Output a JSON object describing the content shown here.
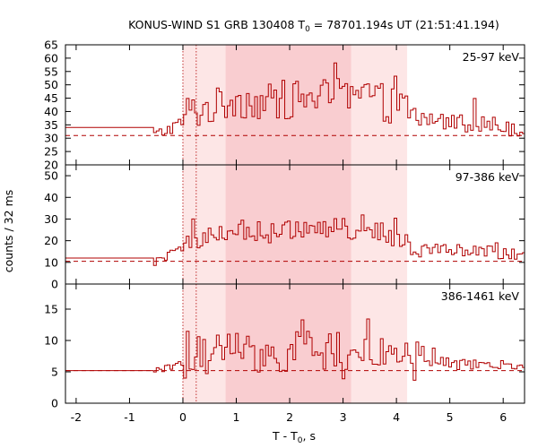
{
  "chart_data": {
    "type": "line",
    "title": "KONUS-WIND S1 GRB 130408 T",
    "title_sub": "0",
    "title_rest": " = 78701.194s UT (21:51:41.194)",
    "xlabel": "T - T",
    "xlabel_sub": "0",
    "xlabel_rest": ", s",
    "ylabel": "counts / 32 ms",
    "xlim": [
      -2.2,
      6.4
    ],
    "x_ticks": [
      -2,
      -1,
      0,
      1,
      2,
      3,
      4,
      5,
      6
    ],
    "shade_light": [
      0.0,
      4.2
    ],
    "shade_dark": [
      0.8,
      3.15
    ],
    "vlines": [
      0.0,
      0.25
    ],
    "line_color": "#b00000",
    "shade_light_color": "#fde6e6",
    "shade_dark_color": "#f9cdd0",
    "panels": [
      {
        "label": "25-97 keV",
        "ylim": [
          20,
          65
        ],
        "y_ticks": [
          20,
          25,
          30,
          35,
          40,
          45,
          50,
          55,
          60,
          65
        ],
        "background": 31,
        "pre_level": 34,
        "quiet_amp": 2.5,
        "amp": 1.0,
        "min": 21
      },
      {
        "label": "97-386 keV",
        "ylim": [
          0,
          55
        ],
        "y_ticks": [
          0,
          10,
          20,
          30,
          40,
          50
        ],
        "background": 10.5,
        "pre_level": 12,
        "quiet_amp": 2.0,
        "amp": 1.0,
        "min": 4
      },
      {
        "label": "386-1461 keV",
        "ylim": [
          0,
          19
        ],
        "y_ticks": [
          0,
          5,
          10,
          15
        ],
        "background": 5.2,
        "pre_level": 5.2,
        "quiet_amp": 0.6,
        "amp": 1.0,
        "min": 0.5
      }
    ]
  }
}
